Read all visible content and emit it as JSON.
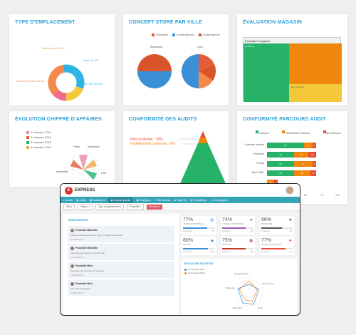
{
  "cards": {
    "type_emplacement": {
      "title": "Type d'emplacement",
      "labels": [
        "Mezzanine 19.3%",
        "Gare 13.1%",
        "Centre ville 33.3%",
        "Centre commercial 34..."
      ]
    },
    "concept_store": {
      "title": "Concept store par ville",
      "legend": [
        "Proximité",
        "Contemporain",
        "Supermarché"
      ],
      "cities": [
        "Bordeaux",
        "Lyon"
      ]
    },
    "evaluation_magasin": {
      "title": "Évaluation magasin",
      "header": "Evaluation magasin",
      "cells": [
        "Conforme",
        "",
        "Non conforme"
      ]
    },
    "evolution_ca": {
      "title": "Évolution chiffre d'affaires",
      "legend": [
        "1 trimestre 2016",
        "2 trimestre 2016",
        "3 trimestre 2016",
        "4 trimestre 2016"
      ],
      "axes": [
        "Paris",
        "Bordeaux",
        "Lille",
        "Marseille"
      ]
    },
    "conformite_audits": {
      "title": "Conformité des audits",
      "non_conforme": "Non conforme : 16%",
      "partiel": "Partiellement conforme : 9%"
    },
    "conformite_parcours": {
      "title": "Conformité parcours audit",
      "legend": [
        "Conforme",
        "Partiellement conforme",
        "Non conforme"
      ],
      "rows": [
        {
          "label": "Customer Journey",
          "values": [
            "80",
            "14",
            "6"
          ]
        },
        {
          "label": "Personnel",
          "values": [
            "60",
            "20",
            "20"
          ]
        },
        {
          "label": "Produit",
          "values": [
            "60",
            "32",
            "8"
          ]
        },
        {
          "label": "Back Office",
          "values": [
            "60",
            "28",
            "12"
          ]
        },
        {
          "label": "",
          "values": [
            "",
            "14",
            ""
          ]
        }
      ],
      "ticks": [
        "50",
        "75",
        "100"
      ]
    }
  },
  "app": {
    "brand": "EXPRESS",
    "nav": [
      "Accueil",
      "Audits",
      "Statistiques",
      "Analyse globale",
      "Enseignes",
      "Plan d'action",
      "Tags/Rep",
      "Photothèque",
      "Cartographie"
    ],
    "filters": [
      "Ville",
      "Région",
      "Type d'emplacement",
      "Proximité"
    ],
    "reinit": "Réinitialiser",
    "observations_title": "Observations",
    "observations": [
      {
        "name": "Proximité Marseille",
        "text": "Manque d'efficacité dans la prise en charge des clients",
        "date": "21/09/2016"
      },
      {
        "name": "Proximité Marseille",
        "text": "Absence de lumière conventionnelle",
        "date": "19/08/2016"
      },
      {
        "name": "Proximité Metz",
        "text": "Prise des prix pas mise en cadrage",
        "date": "05/09/2016"
      },
      {
        "name": "Proximité Metz",
        "text": "Sols salis et glissants",
        "date": "15/07/2016"
      }
    ],
    "kpis": [
      {
        "value": "77%",
        "label": "Vente additionnelle",
        "foot": "Paramètres",
        "pct": "77%",
        "color": "#3b8fd6",
        "fill": 77
      },
      {
        "value": "74%",
        "label": "Conseil et proximité",
        "foot": "Paramètres",
        "pct": "74%",
        "color": "#9b59b6",
        "fill": 74
      },
      {
        "value": "66%",
        "label": "Personnel",
        "foot": "Paramètres",
        "pct": "66%",
        "color": "#555555",
        "fill": 66
      },
      {
        "value": "80%",
        "label": "Produit",
        "foot": "Paramètres",
        "pct": "80%",
        "color": "#3b8fd6",
        "fill": 80
      },
      {
        "value": "75%",
        "label": "Magasin",
        "foot": "Paramètres",
        "pct": "75%",
        "color": "#c0392b",
        "fill": 75
      },
      {
        "value": "77%",
        "label": "Satisfaction client",
        "foot": "Paramètres",
        "pct": "77%",
        "color": "#e74c3c",
        "fill": 77
      }
    ],
    "evolution_title": "Évolution notation",
    "evolution_legend": [
      "1er trimestre 2016",
      "2nd trimestre 2016"
    ],
    "radar_axes": [
      "Expérience client",
      "Cycle de vente",
      "Tenue",
      "Back office",
      "Personnel"
    ]
  }
}
